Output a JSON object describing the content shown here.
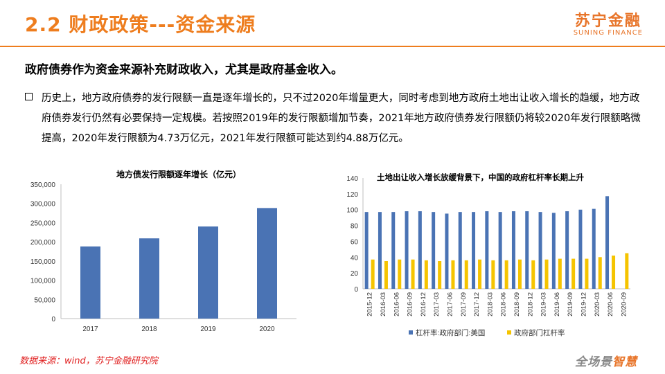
{
  "header": {
    "title": "2.2 财政政策---资金来源",
    "brand_cn": "苏宁金融",
    "brand_en": "SUNING FINANCE"
  },
  "subtitle": "政府债券作为资金来源补充财政收入，尤其是政府基金收入。",
  "body": {
    "paragraph": "历史上，地方政府债券的发行限额一直是逐年增长的，只不过2020年增量更大，同时考虑到地方政府土地出让收入增长的趋缓，地方政府债券发行仍然有必要保持一定规模。若按照2019年的发行限额增加节奏，2021年地方政府债券发行限额仍将较2020年发行限额略微提高，2020年发行限额为4.73万亿元，2021年发行限额可能达到约4.88万亿元。"
  },
  "footer": {
    "source": "数据来源：wind，苏宁金融研究院",
    "slogan_a": "全场景",
    "slogan_b": "智慧"
  },
  "colors": {
    "accent": "#ee7d1e",
    "bar_blue": "#4a73b4",
    "bar_yellow": "#f5c400",
    "source_red": "#e01f1f"
  },
  "chart_data": [
    {
      "type": "bar",
      "title": "地方债发行限额逐年增长（亿元）",
      "categories": [
        "2017",
        "2018",
        "2019",
        "2020"
      ],
      "values": [
        188000,
        209000,
        240000,
        288000
      ],
      "ylim": [
        0,
        350000
      ],
      "yticks": [
        0,
        50000,
        100000,
        150000,
        200000,
        250000,
        300000,
        350000
      ],
      "ytick_labels": [
        "0",
        "50,000",
        "100,000",
        "150,000",
        "200,000",
        "250,000",
        "300,000",
        "350,000"
      ],
      "xlabel": "",
      "ylabel": "",
      "grid": false,
      "legend": "none"
    },
    {
      "type": "bar",
      "title": "土地出让收入增长放缓背景下，中国的政府杠杆率长期上升",
      "categories": [
        "2015-12",
        "2016-03",
        "2016-06",
        "2016-09",
        "2016-12",
        "2017-03",
        "2017-06",
        "2017-09",
        "2017-12",
        "2018-03",
        "2018-06",
        "2018-09",
        "2018-12",
        "2019-03",
        "2019-06",
        "2019-09",
        "2019-12",
        "2020-03",
        "2020-06",
        "2020-09"
      ],
      "series": [
        {
          "name": "杠杆率:政府部门:美国",
          "values": [
            97,
            97,
            97,
            98,
            98,
            97,
            95,
            97,
            97,
            98,
            97,
            98,
            98,
            97,
            96,
            98,
            100,
            101,
            117,
            null
          ]
        },
        {
          "name": "政府部门杠杆率",
          "values": [
            37,
            35,
            37,
            37,
            36,
            35,
            36,
            36,
            37,
            36,
            36,
            37,
            36,
            37,
            38,
            38,
            38,
            40,
            42,
            45
          ]
        }
      ],
      "ylim": [
        0,
        140
      ],
      "yticks": [
        0,
        20,
        40,
        60,
        80,
        100,
        120,
        140
      ],
      "xlabel": "",
      "ylabel": "",
      "grid": false,
      "legend": "bottom"
    }
  ]
}
